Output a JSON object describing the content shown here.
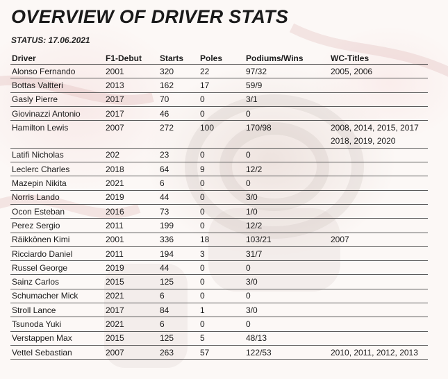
{
  "header": {
    "title": "OVERVIEW OF DRIVER STATS",
    "status": "STATUS: 17.06.2021"
  },
  "table": {
    "columns": [
      "Driver",
      "F1-Debut",
      "Starts",
      "Poles",
      "Podiums/Wins",
      "WC-Titles"
    ],
    "rows": [
      [
        "Alonso Fernando",
        "2001",
        "320",
        "22",
        "97/32",
        "2005, 2006"
      ],
      [
        "Bottas Valtteri",
        "2013",
        "162",
        "17",
        "59/9",
        ""
      ],
      [
        "Gasly Pierre",
        "2017",
        "70",
        "0",
        "3/1",
        ""
      ],
      [
        "Giovinazzi Antonio",
        "2017",
        "46",
        "0",
        "0",
        ""
      ],
      [
        "Hamilton Lewis",
        "2007",
        "272",
        "100",
        "170/98",
        "2008, 2014, 2015, 2017"
      ],
      [
        "",
        "",
        "",
        "",
        "",
        "2018, 2019, 2020"
      ],
      [
        "Latifi Nicholas",
        "202",
        "23",
        "0",
        "0",
        ""
      ],
      [
        "Leclerc Charles",
        "2018",
        "64",
        "9",
        "12/2",
        ""
      ],
      [
        "Mazepin Nikita",
        "2021",
        "6",
        "0",
        "0",
        ""
      ],
      [
        "Norris Lando",
        "2019",
        "44",
        "0",
        "3/0",
        ""
      ],
      [
        "Ocon Esteban",
        "2016",
        "73",
        "0",
        "1/0",
        ""
      ],
      [
        "Perez Sergio",
        "2011",
        "199",
        "0",
        "12/2",
        ""
      ],
      [
        "Räikkönen Kimi",
        "2001",
        "336",
        "18",
        "103/21",
        "2007"
      ],
      [
        "Ricciardo Daniel",
        "2011",
        "194",
        "3",
        "31/7",
        ""
      ],
      [
        "Russel George",
        "2019",
        "44",
        "0",
        "0",
        ""
      ],
      [
        "Sainz Carlos",
        "2015",
        "125",
        "0",
        "3/0",
        ""
      ],
      [
        "Schumacher Mick",
        "2021",
        "6",
        "0",
        "0",
        ""
      ],
      [
        "Stroll Lance",
        "2017",
        "84",
        "1",
        "3/0",
        ""
      ],
      [
        "Tsunoda Yuki",
        "2021",
        "6",
        "0",
        "0",
        ""
      ],
      [
        "Verstappen Max",
        "2015",
        "125",
        "5",
        "48/13",
        ""
      ],
      [
        "Vettel Sebastian",
        "2007",
        "263",
        "57",
        "122/53",
        "2010, 2011, 2012, 2013"
      ]
    ]
  }
}
